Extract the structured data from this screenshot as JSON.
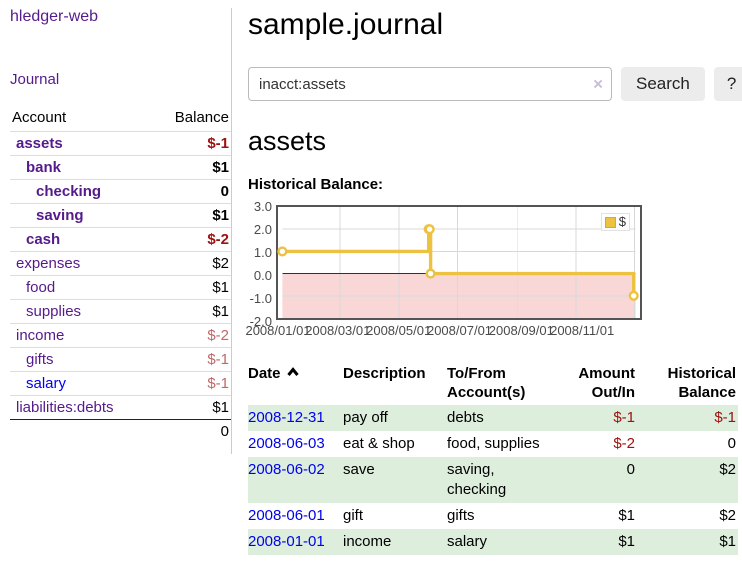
{
  "app": {
    "brand": "hledger-web"
  },
  "sidebar": {
    "journal_link": "Journal",
    "headers": {
      "account": "Account",
      "balance": "Balance"
    },
    "accounts": [
      {
        "name": "assets",
        "level": 1,
        "bold": true,
        "balance": "$-1",
        "balance_tone": "neg"
      },
      {
        "name": "bank",
        "level": 2,
        "bold": true,
        "balance": "$1",
        "balance_tone": ""
      },
      {
        "name": "checking",
        "level": 3,
        "bold": true,
        "balance": "0",
        "balance_tone": ""
      },
      {
        "name": "saving",
        "level": 3,
        "bold": true,
        "balance": "$1",
        "balance_tone": ""
      },
      {
        "name": "cash",
        "level": 2,
        "bold": true,
        "balance": "$-2",
        "balance_tone": "neg"
      },
      {
        "name": "expenses",
        "level": 1,
        "bold": false,
        "balance": "$2",
        "balance_tone": ""
      },
      {
        "name": "food",
        "level": 2,
        "bold": false,
        "balance": "$1",
        "balance_tone": ""
      },
      {
        "name": "supplies",
        "level": 2,
        "bold": false,
        "balance": "$1",
        "balance_tone": ""
      },
      {
        "name": "income",
        "level": 1,
        "bold": false,
        "balance": "$-2",
        "balance_tone": "negl"
      },
      {
        "name": "gifts",
        "level": 2,
        "bold": false,
        "balance": "$-1",
        "balance_tone": "negl"
      },
      {
        "name": "salary",
        "level": 2,
        "bold": false,
        "unvisited": true,
        "balance": "$-1",
        "balance_tone": "negl"
      },
      {
        "name": "liabilities:debts",
        "level": 1,
        "bold": false,
        "balance": "$1",
        "balance_tone": ""
      }
    ],
    "total": "0"
  },
  "main": {
    "title": "sample.journal",
    "search": {
      "value": "inacct:assets",
      "clear_icon": "×",
      "search_button": "Search",
      "help_button": "?"
    },
    "account_heading": "assets",
    "chart_heading": "Historical Balance:"
  },
  "chart_data": {
    "type": "line",
    "step": true,
    "title": "Historical Balance",
    "series": [
      {
        "name": "$",
        "x": [
          "2008-01-01",
          "2008-06-01",
          "2008-06-02",
          "2008-06-03",
          "2008-12-31"
        ],
        "y": [
          1,
          2,
          2,
          0,
          -1
        ]
      }
    ],
    "x_range": [
      "2008-01-01",
      "2009-01-02"
    ],
    "ylim": [
      -2,
      3
    ],
    "y_ticks": [
      "3.0",
      "2.0",
      "1.0",
      "0.0",
      "-1.0",
      "-2.0"
    ],
    "x_ticks": [
      "2008/01/01",
      "2008/03/01",
      "2008/05/01",
      "2008/07/01",
      "2008/09/01",
      "2008/11/01"
    ],
    "x_grid_unlabeled": [
      "2009-01-01"
    ],
    "grid": true,
    "legend_position": "top-right",
    "negative_region_shaded": true,
    "colors": {
      "line": "#edc240",
      "marker_fill": "#ffffff",
      "negative_region": "#f9d7d7",
      "zero_line": "#a00000",
      "grid": "#d8d8d8",
      "border": "#545454"
    }
  },
  "register": {
    "headers": [
      {
        "label": "Date",
        "align": "left",
        "sort": "asc"
      },
      {
        "label": "Description",
        "align": "left"
      },
      {
        "label": "To/From Account(s)",
        "align": "left"
      },
      {
        "label": "Amount Out/In",
        "align": "right"
      },
      {
        "label": "Historical Balance",
        "align": "right"
      }
    ],
    "rows": [
      {
        "date": "2008-12-31",
        "description": "pay off",
        "accounts": "debts",
        "amount": "$-1",
        "amount_tone": "neg",
        "balance": "$-1",
        "balance_tone": "neg"
      },
      {
        "date": "2008-06-03",
        "description": "eat & shop",
        "accounts": "food, supplies",
        "amount": "$-2",
        "amount_tone": "neg",
        "balance": "0",
        "balance_tone": ""
      },
      {
        "date": "2008-06-02",
        "description": "save",
        "accounts": "saving, checking",
        "amount": "0",
        "amount_tone": "",
        "balance": "$2",
        "balance_tone": ""
      },
      {
        "date": "2008-06-01",
        "description": "gift",
        "accounts": "gifts",
        "amount": "$1",
        "amount_tone": "",
        "balance": "$2",
        "balance_tone": ""
      },
      {
        "date": "2008-01-01",
        "description": "income",
        "accounts": "salary",
        "amount": "$1",
        "amount_tone": "",
        "balance": "$1",
        "balance_tone": ""
      }
    ]
  },
  "colors": {
    "link_visited": "#551a8b",
    "link_unvisited": "#0000ee",
    "negative_strong": "#a01010",
    "negative_muted": "#c06868",
    "row_stripe": "#ddeedd",
    "button_bg": "#ececec"
  }
}
